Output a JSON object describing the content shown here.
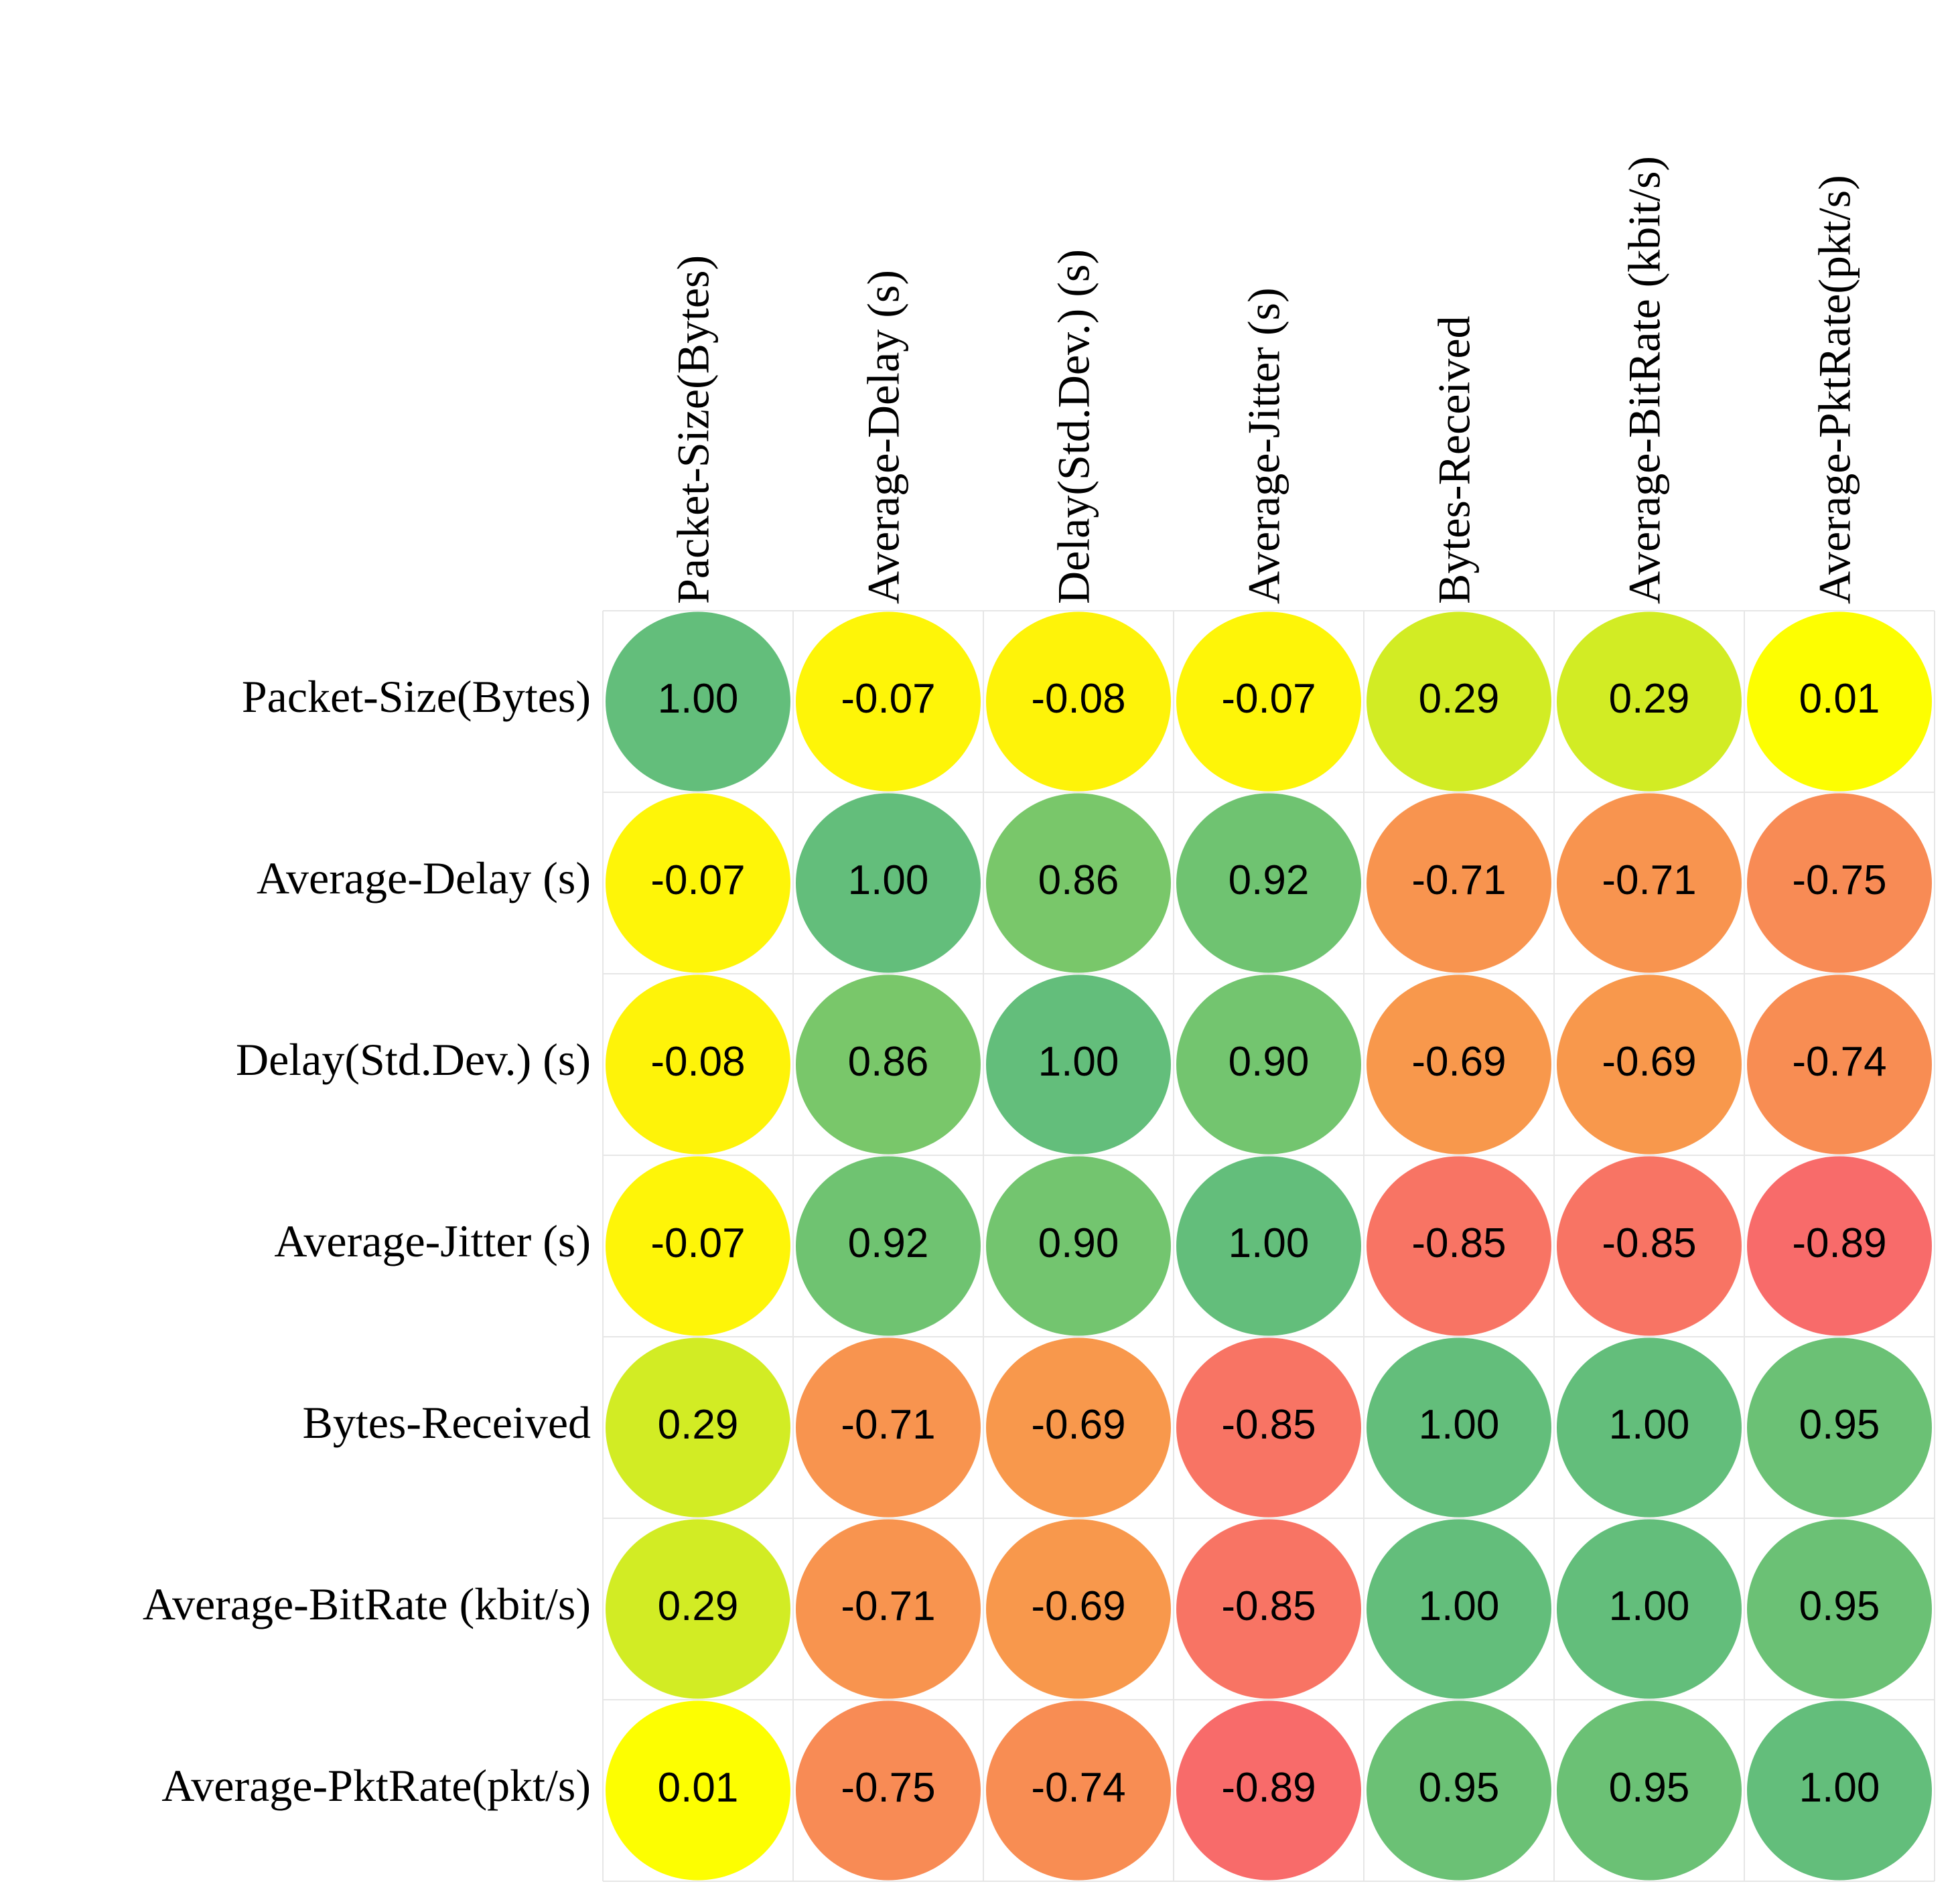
{
  "chart_data": {
    "type": "heatmap",
    "title": "",
    "style": "circle-correlation-matrix",
    "columns": [
      "Packet-Size(Bytes)",
      "Average-Delay (s)",
      "Delay(Std.Dev.) (s)",
      "Average-Jitter (s)",
      "Bytes-Received",
      "Average-BitRate (kbit/s)",
      "Average-PktRate(pkt/s)"
    ],
    "rows": [
      "Packet-Size(Bytes)",
      "Average-Delay (s)",
      "Delay(Std.Dev.) (s)",
      "Average-Jitter (s)",
      "Bytes-Received",
      "Average-BitRate (kbit/s)",
      "Average-PktRate(pkt/s)"
    ],
    "values": [
      [
        "1.00",
        "-0.07",
        "-0.08",
        "-0.07",
        "0.29",
        "0.29",
        "0.01"
      ],
      [
        "-0.07",
        "1.00",
        "0.86",
        "0.92",
        "-0.71",
        "-0.71",
        "-0.75"
      ],
      [
        "-0.08",
        "0.86",
        "1.00",
        "0.90",
        "-0.69",
        "-0.69",
        "-0.74"
      ],
      [
        "-0.07",
        "0.92",
        "0.90",
        "1.00",
        "-0.85",
        "-0.85",
        "-0.89"
      ],
      [
        "0.29",
        "-0.71",
        "-0.69",
        "-0.85",
        "1.00",
        "1.00",
        "0.95"
      ],
      [
        "0.29",
        "-0.71",
        "-0.69",
        "-0.85",
        "1.00",
        "1.00",
        "0.95"
      ],
      [
        "0.01",
        "-0.75",
        "-0.74",
        "-0.89",
        "0.95",
        "0.95",
        "1.00"
      ]
    ],
    "colors": {
      "positive_high": "#63be7b",
      "neutral": "#ffff00",
      "negative_high": "#f8696b",
      "negative_mid": "#f8964d"
    },
    "value_range": [
      -1,
      1
    ]
  }
}
